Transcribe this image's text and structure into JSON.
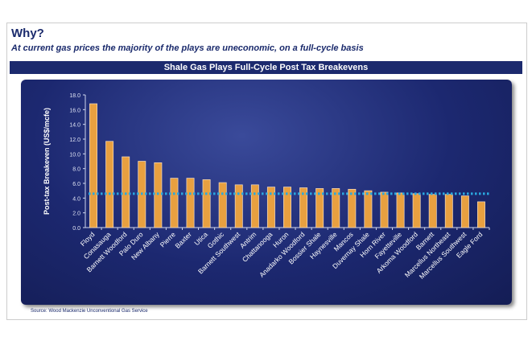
{
  "header": {
    "title": "Why?",
    "subtitle": "At current gas prices the majority of the plays are uneconomic, on a full-cycle basis"
  },
  "source": "Source: Wood Mackenzie Unconventional Gas Service",
  "chart_data": {
    "type": "bar",
    "title": "Shale Gas Plays Full-Cycle Post Tax Breakevens",
    "xlabel": "",
    "ylabel": "Post-tax Breakeven (US$/mcfe)",
    "ylim": [
      0,
      18
    ],
    "yticks": [
      "0.0",
      "2.0",
      "4.0",
      "6.0",
      "8.0",
      "10.0",
      "12.0",
      "14.0",
      "16.0",
      "18.0"
    ],
    "categories": [
      "Floyd",
      "Conasauga",
      "Barnett Woodford",
      "Palo Duro",
      "New Albany",
      "Pierre",
      "Baxter",
      "Utica",
      "Gothic",
      "Barnett Southwest",
      "Antrim",
      "Chattanooga",
      "Huron",
      "Anadarko Woodford",
      "Bossier Shale",
      "Haynesville",
      "Mancos",
      "Duvernay Shale",
      "Horn River",
      "Fayetteville",
      "Arkoma Woodford",
      "Barnett",
      "Marcellus Northeast",
      "Marcellus Southwest",
      "Eagle Ford"
    ],
    "values": [
      16.8,
      11.7,
      9.6,
      9.0,
      8.8,
      6.7,
      6.7,
      6.5,
      6.1,
      5.8,
      5.8,
      5.5,
      5.5,
      5.4,
      5.3,
      5.3,
      5.2,
      5.0,
      4.8,
      4.7,
      4.6,
      4.5,
      4.5,
      4.3,
      3.5
    ],
    "reference_line": {
      "value": 4.6,
      "style": "dotted",
      "color": "#2aa8e0"
    },
    "bar_color": "#e8a040",
    "grid": false
  }
}
